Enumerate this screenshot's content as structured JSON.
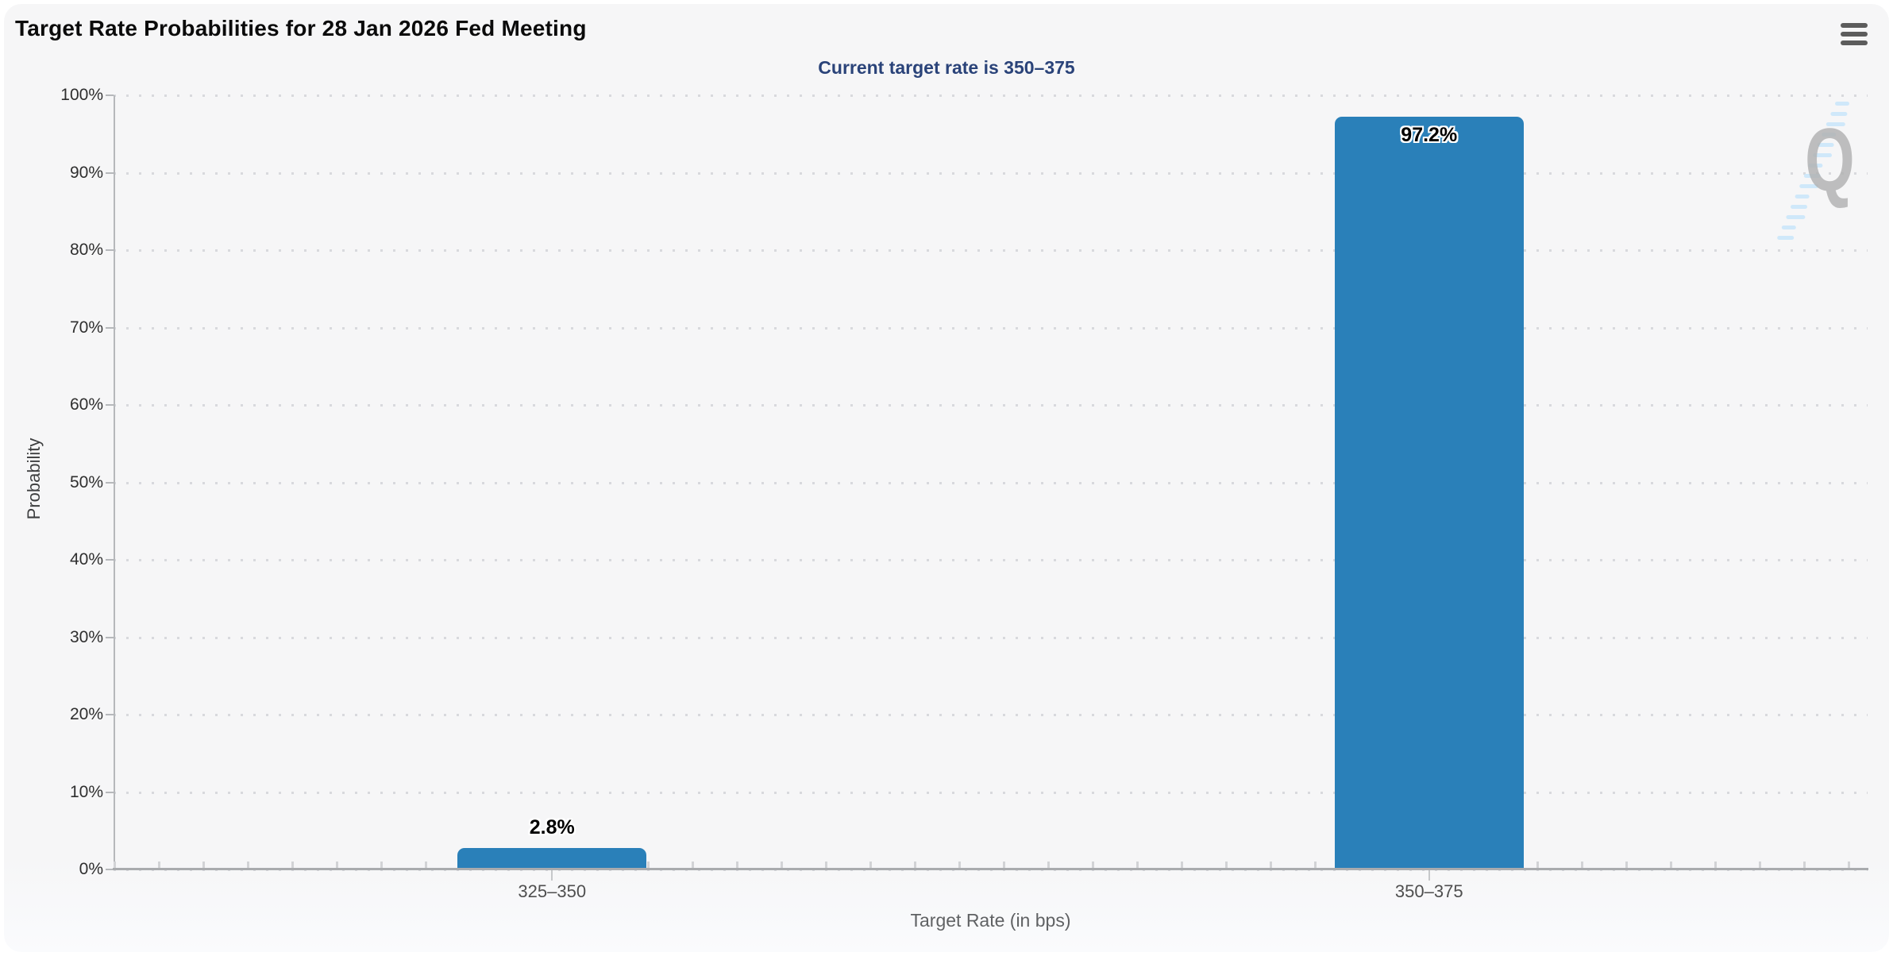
{
  "header": {
    "title": "Target Rate Probabilities for 28 Jan 2026 Fed Meeting",
    "menu_icon": "hamburger-icon"
  },
  "chart_data": {
    "type": "bar",
    "title": "Target Rate Probabilities for 28 Jan 2026 Fed Meeting",
    "subtitle": "Current target rate is 350–375",
    "categories": [
      "325–350",
      "350–375"
    ],
    "values": [
      2.8,
      97.2
    ],
    "value_labels": [
      "2.8%",
      "97.2%"
    ],
    "xlabel": "Target Rate (in bps)",
    "ylabel": "Probability",
    "ylim": [
      0,
      100
    ],
    "ytick_step": 10,
    "ytick_labels": [
      "0%",
      "10%",
      "20%",
      "30%",
      "40%",
      "50%",
      "60%",
      "70%",
      "80%",
      "90%",
      "100%"
    ],
    "grid": "dotted-horizontal",
    "legend": false,
    "bar_color": "#2a80b9"
  },
  "watermark": {
    "letter": "Q",
    "swoosh_color": "#cbe7fa",
    "letter_color": "#b0b0b0"
  },
  "colors": {
    "panel_bg": "#f6f6f7",
    "page_bg": "#ffffff",
    "subtitle": "#2a4379",
    "axis": "#b6b8bb",
    "grid_dot": "#d8d9dd",
    "bar": "#2a80b9"
  }
}
